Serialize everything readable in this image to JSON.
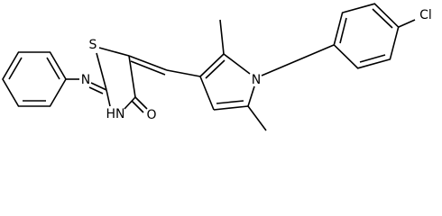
{
  "atoms": [
    "S",
    "N",
    "HN",
    "O",
    "N",
    "Cl"
  ]
}
